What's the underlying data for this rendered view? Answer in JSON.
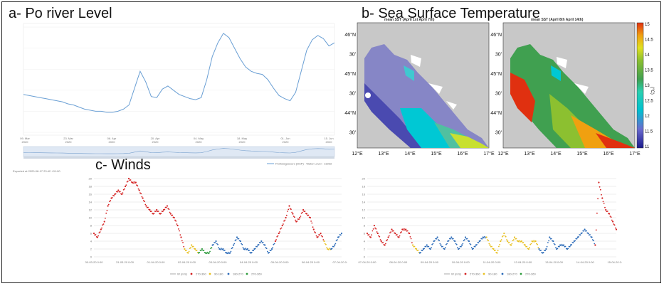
{
  "titles": {
    "a": "a- Po river Level",
    "b": "b- Sea Surface Temperature",
    "c": "c- Winds"
  },
  "po_river": {
    "series": "Pontelagoscuro (DAP) - Water Level - 11983",
    "exported": "Exported at 2020-06-17 23:42 +01:00",
    "x_ticks": [
      "09. Mar 2020",
      "23. Mar 2020",
      "06. Apr 2020",
      "20. Apr 2020",
      "04. May 2020",
      "18. May 2020",
      "01. Jun 2020",
      "15. Jun 2020"
    ],
    "chart_data": {
      "type": "line",
      "x_range": [
        "2020-03-09",
        "2020-06-17"
      ],
      "values": [
        0.36,
        0.35,
        0.34,
        0.33,
        0.32,
        0.31,
        0.3,
        0.29,
        0.27,
        0.26,
        0.24,
        0.22,
        0.21,
        0.2,
        0.2,
        0.19,
        0.19,
        0.2,
        0.22,
        0.26,
        0.42,
        0.58,
        0.48,
        0.34,
        0.33,
        0.41,
        0.44,
        0.4,
        0.36,
        0.34,
        0.32,
        0.31,
        0.33,
        0.5,
        0.72,
        0.85,
        0.94,
        0.9,
        0.8,
        0.7,
        0.62,
        0.58,
        0.56,
        0.55,
        0.5,
        0.42,
        0.35,
        0.32,
        0.3,
        0.38,
        0.58,
        0.78,
        0.88,
        0.92,
        0.89,
        0.82,
        0.85
      ]
    }
  },
  "sst": {
    "map1_title": "mean SST (April 1st April 7th)",
    "map2_title": "mean SST (April 8th April 14th)",
    "lon_ticks": [
      "12°E",
      "13°E",
      "14°E",
      "15°E",
      "16°E",
      "17°E"
    ],
    "lat_ticks": [
      "46°N",
      "30'",
      "45°N",
      "30'",
      "44°N",
      "30'"
    ],
    "colorbar_ticks": [
      "15",
      "14.5",
      "14",
      "13.5",
      "13",
      "12.5",
      "12",
      "11.5",
      "11"
    ],
    "colorbar_unit": "(°C)",
    "colors": [
      "#1a1a8c",
      "#3b3bb5",
      "#6b6bcf",
      "#9a9ad8",
      "#00c0d0",
      "#2ad0b0",
      "#40a050",
      "#8cc030",
      "#e0e020",
      "#f0a010",
      "#e03010"
    ]
  },
  "winds": {
    "left": {
      "x_ticks": [
        "30-03-20 0:00",
        "31-03-20 0:00",
        "01-04-20 0:00",
        "02-04-20 0:00",
        "03-04-20 0:00",
        "04-04-20 0:00",
        "05-04-20 0:00",
        "06-04-20 0:00",
        "07-04-20 0:00"
      ],
      "y_ticks": [
        "20",
        "18",
        "16",
        "14",
        "12",
        "10",
        "8",
        "6",
        "4",
        "2",
        "0"
      ],
      "legend": [
        "W (m/s)",
        "270-360",
        "90-180",
        "180-270",
        "270-360"
      ],
      "chart_data": {
        "type": "scatter",
        "ylim": [
          0,
          20
        ],
        "values": [
          6,
          5,
          7,
          9,
          13,
          15,
          16,
          17,
          16,
          18,
          20,
          19,
          19,
          17,
          15,
          13,
          12,
          11,
          12,
          11,
          12,
          13,
          11,
          10,
          8,
          5,
          2,
          1,
          3,
          2,
          1,
          2,
          1,
          1,
          3,
          4,
          2,
          2,
          1,
          1,
          3,
          5,
          4,
          2,
          2,
          1,
          2,
          3,
          4,
          3,
          1,
          2,
          4,
          6,
          8,
          10,
          13,
          11,
          9,
          10,
          12,
          11,
          10,
          7,
          5,
          6,
          4,
          2,
          2,
          3,
          5,
          6
        ],
        "directions": [
          "270-360",
          "270-360",
          "270-360",
          "270-360",
          "270-360",
          "270-360",
          "270-360",
          "270-360",
          "270-360",
          "270-360",
          "270-360",
          "270-360",
          "270-360",
          "270-360",
          "270-360",
          "270-360",
          "270-360",
          "270-360",
          "270-360",
          "270-360",
          "270-360",
          "270-360",
          "270-360",
          "270-360",
          "270-360",
          "270-360",
          "90-180",
          "90-180",
          "90-180",
          "90-180",
          "0-90",
          "0-90",
          "0-90",
          "0-90",
          "180-270",
          "180-270",
          "180-270",
          "180-270",
          "180-270",
          "180-270",
          "180-270",
          "180-270",
          "180-270",
          "180-270",
          "180-270",
          "180-270",
          "180-270",
          "180-270",
          "180-270",
          "180-270",
          "180-270",
          "180-270",
          "270-360",
          "270-360",
          "270-360",
          "270-360",
          "270-360",
          "270-360",
          "270-360",
          "270-360",
          "270-360",
          "270-360",
          "270-360",
          "270-360",
          "270-360",
          "270-360",
          "90-180",
          "90-180",
          "180-270",
          "180-270",
          "180-270",
          "180-270"
        ]
      }
    },
    "right": {
      "x_ticks": [
        "07-04-20 0:00",
        "08-04-20 0:00",
        "09-04-20 0:00",
        "10-04-20 0:00",
        "11-04-20 0:00",
        "12-04-20 0:00",
        "13-04-20 0:00",
        "14-04-20 0:00",
        "15-04-20 0:00"
      ],
      "y_ticks": [
        "20",
        "18",
        "16",
        "14",
        "12",
        "10",
        "8",
        "6",
        "4",
        "2",
        "0"
      ],
      "legend": [
        "W (m/s)",
        "270-360",
        "90-180",
        "180-270",
        "270-360"
      ],
      "chart_data": {
        "type": "scatter",
        "ylim": [
          0,
          20
        ],
        "values": [
          6,
          5,
          8,
          6,
          4,
          3,
          5,
          7,
          6,
          5,
          7,
          7,
          6,
          3,
          2,
          1,
          2,
          3,
          2,
          4,
          5,
          3,
          2,
          4,
          5,
          4,
          2,
          3,
          5,
          4,
          2,
          3,
          4,
          5,
          5,
          3,
          2,
          1,
          4,
          6,
          4,
          3,
          5,
          4,
          4,
          3,
          2,
          4,
          4,
          2,
          1,
          2,
          5,
          4,
          2,
          3,
          3,
          2,
          3,
          4,
          5,
          6,
          7,
          6,
          5,
          3,
          19,
          15,
          12,
          11,
          9,
          7
        ],
        "directions": [
          "270-360",
          "270-360",
          "270-360",
          "270-360",
          "270-360",
          "270-360",
          "270-360",
          "270-360",
          "270-360",
          "270-360",
          "270-360",
          "270-360",
          "270-360",
          "90-180",
          "90-180",
          "180-270",
          "180-270",
          "180-270",
          "180-270",
          "180-270",
          "180-270",
          "180-270",
          "180-270",
          "180-270",
          "180-270",
          "180-270",
          "180-270",
          "180-270",
          "180-270",
          "180-270",
          "180-270",
          "180-270",
          "180-270",
          "180-270",
          "90-180",
          "90-180",
          "90-180",
          "90-180",
          "90-180",
          "90-180",
          "90-180",
          "90-180",
          "90-180",
          "90-180",
          "90-180",
          "90-180",
          "90-180",
          "90-180",
          "90-180",
          "180-270",
          "180-270",
          "180-270",
          "180-270",
          "180-270",
          "180-270",
          "180-270",
          "180-270",
          "180-270",
          "180-270",
          "180-270",
          "180-270",
          "180-270",
          "180-270",
          "180-270",
          "180-270",
          "270-360",
          "270-360",
          "270-360",
          "270-360",
          "270-360",
          "270-360",
          "270-360"
        ]
      }
    },
    "dir_colors": {
      "0-90": "#2a9a3a",
      "90-180": "#e8c020",
      "180-270": "#2a6ab8",
      "270-360": "#d42020"
    }
  }
}
